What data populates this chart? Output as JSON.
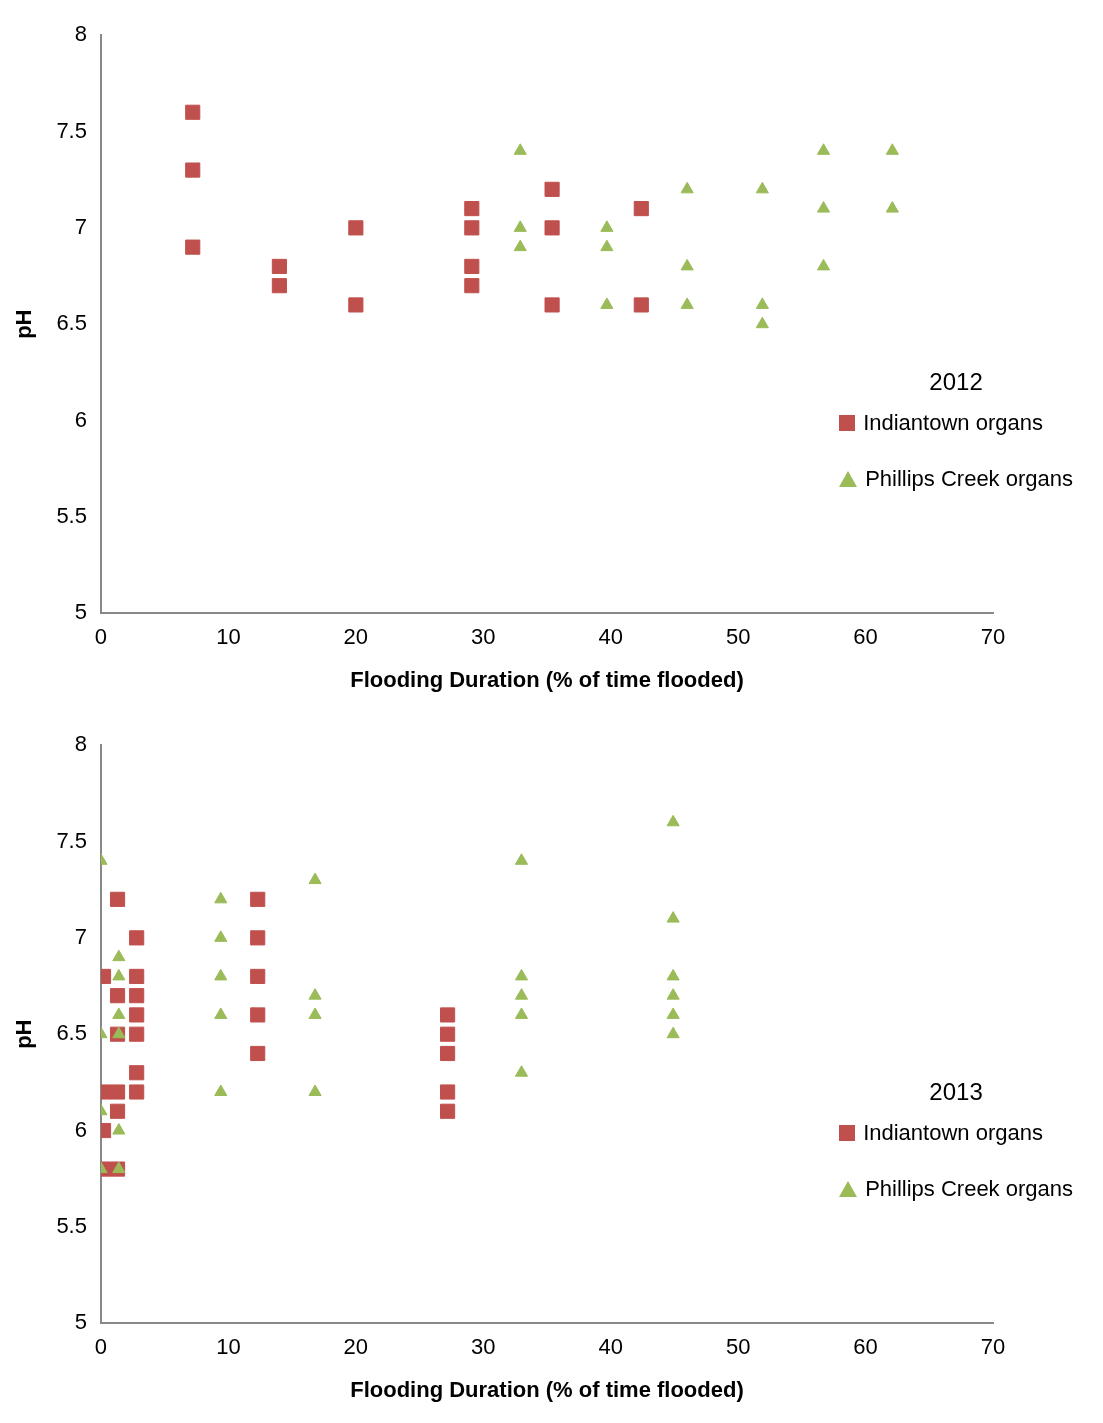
{
  "chart_data": [
    {
      "type": "scatter",
      "xlabel": "Flooding Duration (% of time flooded)",
      "ylabel": "pH",
      "annotations": [
        "2012"
      ],
      "xlim": [
        0,
        70
      ],
      "xticks": [
        0,
        10,
        20,
        30,
        40,
        50,
        60,
        70
      ],
      "ylim": [
        5,
        8
      ],
      "yticks": [
        5,
        5.5,
        6,
        6.5,
        7,
        7.5,
        8
      ],
      "grid": false,
      "legend": "right",
      "series": [
        {
          "name": "Indiantown organs",
          "color": "#c0504d",
          "marker": "square",
          "x": [
            7.2,
            7.2,
            7.2,
            14,
            14,
            20,
            20,
            29.1,
            29.1,
            29.1,
            29.1,
            35.4,
            35.4,
            35.4,
            42.4,
            42.4
          ],
          "values": [
            7.6,
            7.3,
            6.9,
            6.8,
            6.7,
            7.0,
            6.6,
            7.1,
            7.0,
            6.8,
            6.7,
            7.2,
            7.0,
            6.6,
            7.1,
            6.6
          ]
        },
        {
          "name": "Phillips Creek organs",
          "color": "#9bbb59",
          "marker": "triangle",
          "x": [
            32.9,
            32.9,
            32.9,
            39.7,
            39.7,
            39.7,
            46,
            46,
            46,
            51.9,
            51.9,
            51.9,
            56.7,
            56.7,
            56.7,
            62.1,
            62.1
          ],
          "values": [
            7.4,
            7.0,
            6.9,
            7.0,
            6.9,
            6.6,
            7.2,
            6.8,
            6.6,
            7.2,
            6.6,
            6.5,
            7.4,
            7.1,
            6.8,
            7.4,
            7.1
          ]
        }
      ]
    },
    {
      "type": "scatter",
      "xlabel": "Flooding Duration (% of time flooded)",
      "ylabel": "pH",
      "annotations": [
        "2013"
      ],
      "xlim": [
        0,
        70
      ],
      "xticks": [
        0,
        10,
        20,
        30,
        40,
        50,
        60,
        70
      ],
      "ylim": [
        5,
        8
      ],
      "yticks": [
        5,
        5.5,
        6,
        6.5,
        7,
        7.5,
        8
      ],
      "grid": false,
      "legend": "right",
      "series": [
        {
          "name": "Indiantown organs",
          "color": "#c0504d",
          "marker": "square",
          "x": [
            0.2,
            0.2,
            0.2,
            0.2,
            1.3,
            1.3,
            1.3,
            1.3,
            1.3,
            1.3,
            2.8,
            2.8,
            2.8,
            2.8,
            2.8,
            2.8,
            2.8,
            12.3,
            12.3,
            12.3,
            12.3,
            12.3,
            27.2,
            27.2,
            27.2,
            27.2,
            27.2
          ],
          "values": [
            6.8,
            6.2,
            6.0,
            5.8,
            7.2,
            6.7,
            6.5,
            6.2,
            6.1,
            5.8,
            7.0,
            6.8,
            6.7,
            6.6,
            6.5,
            6.3,
            6.2,
            7.2,
            7.0,
            6.8,
            6.6,
            6.4,
            6.6,
            6.5,
            6.4,
            6.2,
            6.1
          ]
        },
        {
          "name": "Phillips Creek organs",
          "color": "#9bbb59",
          "marker": "triangle",
          "x": [
            0,
            0,
            0,
            0,
            1.4,
            1.4,
            1.4,
            1.4,
            1.4,
            1.4,
            9.4,
            9.4,
            9.4,
            9.4,
            9.4,
            16.8,
            16.8,
            16.8,
            16.8,
            33,
            33,
            33,
            33,
            33,
            44.9,
            44.9,
            44.9,
            44.9,
            44.9,
            44.9
          ],
          "values": [
            7.4,
            6.5,
            6.1,
            5.8,
            6.9,
            6.8,
            6.6,
            6.5,
            6.0,
            5.8,
            7.2,
            7.0,
            6.8,
            6.6,
            6.2,
            7.3,
            6.7,
            6.6,
            6.2,
            7.4,
            6.8,
            6.7,
            6.6,
            6.3,
            7.6,
            7.1,
            6.8,
            6.7,
            6.6,
            6.5
          ]
        }
      ]
    }
  ]
}
